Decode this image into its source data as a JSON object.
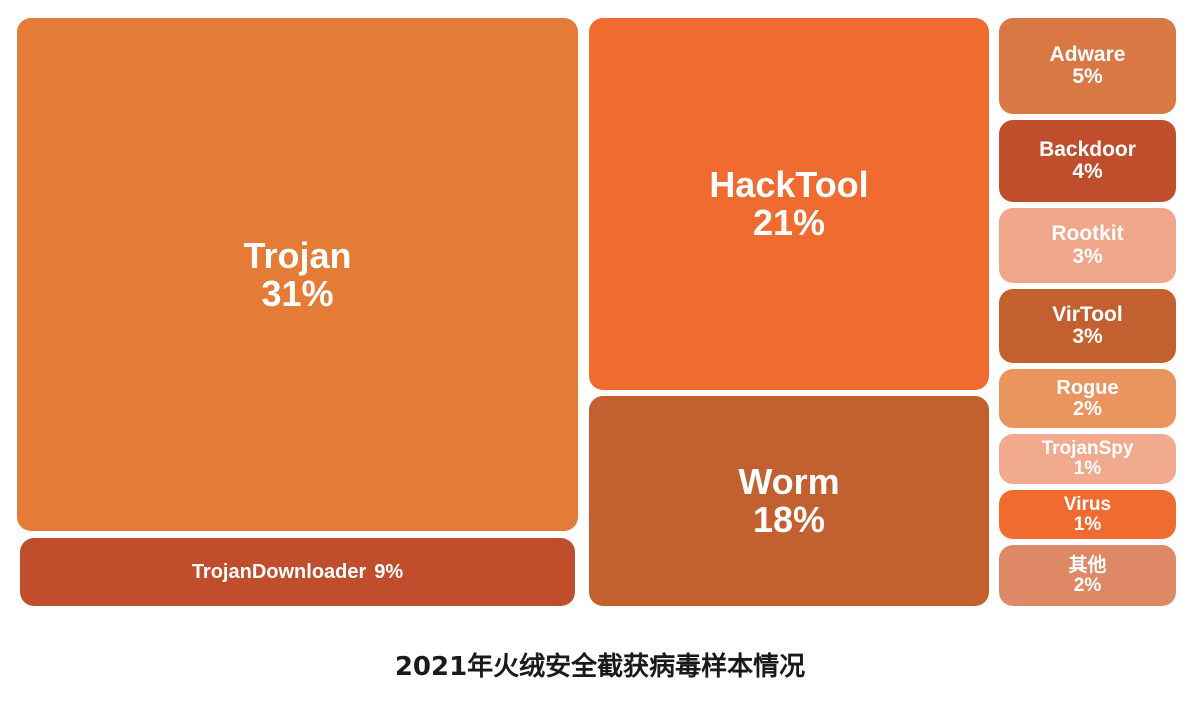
{
  "title": "2021年火绒安全截获病毒样本情况",
  "chart_data": {
    "type": "treemap",
    "title": "2021年火绒安全截获病毒样本情况",
    "unit": "%",
    "items": [
      {
        "label": "Trojan",
        "value": 31,
        "display": "31%",
        "color": "#E47B36"
      },
      {
        "label": "TrojanDownloader",
        "value": 9,
        "display": "9%",
        "color": "#C04E2D"
      },
      {
        "label": "HackTool",
        "value": 21,
        "display": "21%",
        "color": "#F06B30"
      },
      {
        "label": "Worm",
        "value": 18,
        "display": "18%",
        "color": "#C26030"
      },
      {
        "label": "Adware",
        "value": 5,
        "display": "5%",
        "color": "#D97745"
      },
      {
        "label": "Backdoor",
        "value": 4,
        "display": "4%",
        "color": "#C04E2D"
      },
      {
        "label": "Rootkit",
        "value": 3,
        "display": "3%",
        "color": "#EFA689"
      },
      {
        "label": "VirTool",
        "value": 3,
        "display": "3%",
        "color": "#C26030"
      },
      {
        "label": "Rogue",
        "value": 2,
        "display": "2%",
        "color": "#EA9460"
      },
      {
        "label": "TrojanSpy",
        "value": 1,
        "display": "1%",
        "color": "#F1AA8E"
      },
      {
        "label": "Virus",
        "value": 1,
        "display": "1%",
        "color": "#F06B30"
      },
      {
        "label": "其他",
        "value": 2,
        "display": "2%",
        "color": "#DE8866"
      }
    ]
  }
}
